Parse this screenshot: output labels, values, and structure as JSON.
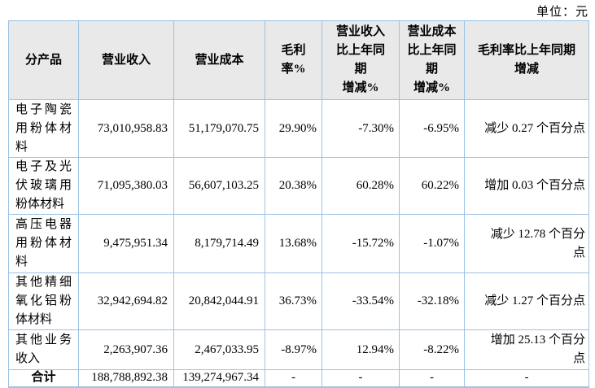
{
  "page": {
    "unit_label": "单位：元"
  },
  "colors": {
    "table_border": "#9CC2E5",
    "header_background": "#E9E9E9",
    "text": "#000000"
  },
  "table": {
    "headers": {
      "product": "分产品",
      "revenue": "营业收入",
      "cost": "营业成本",
      "gross_margin": "毛利\n率%",
      "revenue_yoy": "营业收入\n比上年同\n期\n增减%",
      "cost_yoy": "营业成本\n比上年同\n期\n增减%",
      "margin_yoy": "毛利率比上年同期\n增减"
    },
    "rows": [
      {
        "name": "电子陶瓷用粉体材料",
        "revenue": "73,010,958.83",
        "cost": "51,179,070.75",
        "gross_margin": "29.90%",
        "revenue_yoy": "-7.30%",
        "cost_yoy": "-6.95%",
        "margin_yoy": "减少 0.27 个百分点"
      },
      {
        "name": "电子及光伏玻璃用粉体材料",
        "revenue": "71,095,380.03",
        "cost": "56,607,103.25",
        "gross_margin": "20.38%",
        "revenue_yoy": "60.28%",
        "cost_yoy": "60.22%",
        "margin_yoy": "增加 0.03 个百分点"
      },
      {
        "name": "高压电器用粉体材料",
        "revenue": "9,475,951.34",
        "cost": "8,179,714.49",
        "gross_margin": "13.68%",
        "revenue_yoy": "-15.72%",
        "cost_yoy": "-1.07%",
        "margin_yoy": "减少 12.78 个百分点"
      },
      {
        "name": "其他精细氧化铝粉体材料",
        "revenue": "32,942,694.82",
        "cost": "20,842,044.91",
        "gross_margin": "36.73%",
        "revenue_yoy": "-33.54%",
        "cost_yoy": "-32.18%",
        "margin_yoy": "减少 1.27 个百分点"
      },
      {
        "name": "其他业务收入",
        "revenue": "2,263,907.36",
        "cost": "2,467,033.95",
        "gross_margin": "-8.97%",
        "revenue_yoy": "12.94%",
        "cost_yoy": "-8.22%",
        "margin_yoy": "增加 25.13 个百分点"
      }
    ],
    "total_row": {
      "name": "合计",
      "revenue": "188,788,892.38",
      "cost": "139,274,967.34",
      "gross_margin": "-",
      "revenue_yoy": "-",
      "cost_yoy": "-",
      "margin_yoy": "-"
    }
  }
}
